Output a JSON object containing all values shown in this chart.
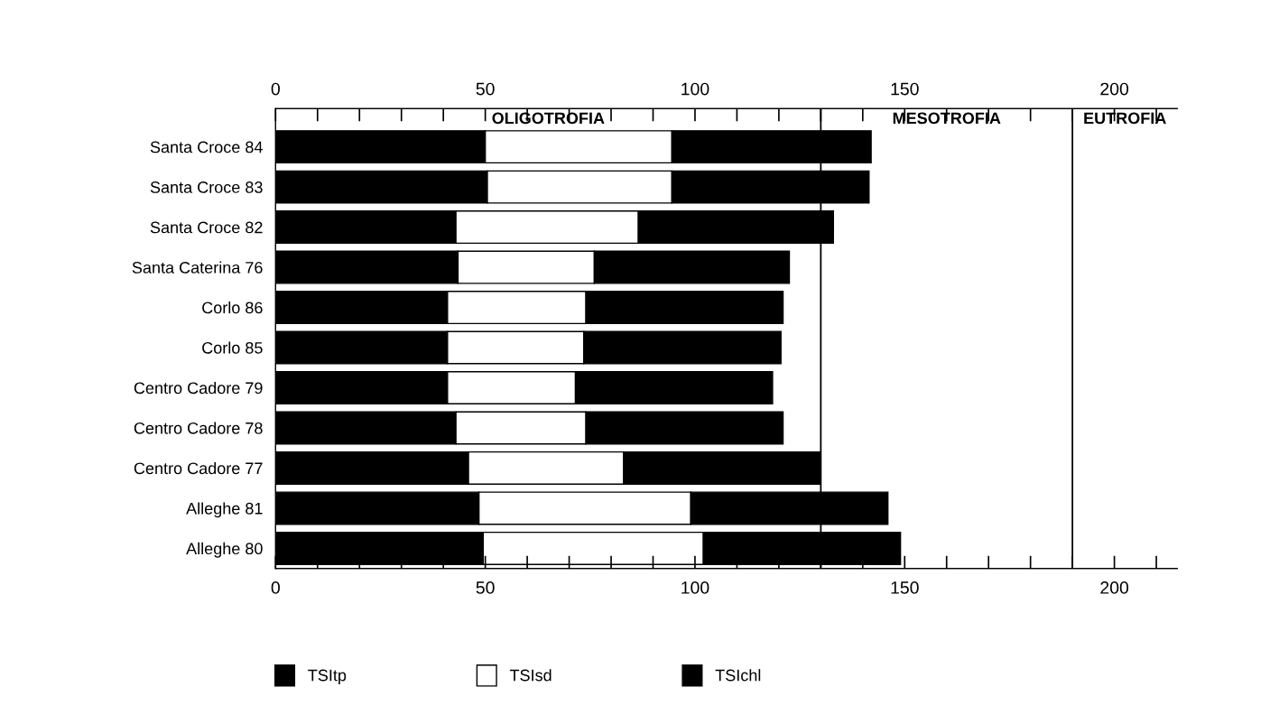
{
  "chart_data": {
    "type": "bar",
    "orientation": "horizontal",
    "stacked": true,
    "categories": [
      "Santa Croce 84",
      "Santa Croce 83",
      "Santa Croce 82",
      "Santa Caterina 76",
      "Corlo 86",
      "Corlo 85",
      "Centro Cadore 79",
      "Centro Cadore 78",
      "Centro Cadore 77",
      "Alleghe 81",
      "Alleghe 80"
    ],
    "series": [
      {
        "name": "TSItp",
        "color": "#000000",
        "values": [
          50,
          50.5,
          43,
          43.5,
          41,
          41,
          41,
          43,
          46,
          48.5,
          49.5
        ]
      },
      {
        "name": "TSIsd",
        "color": "#ffffff",
        "values": [
          44.5,
          44,
          43.5,
          32.5,
          33,
          32.5,
          30.5,
          31,
          37,
          50.5,
          52.5
        ]
      },
      {
        "name": "TSIchl",
        "color": "#000000",
        "values": [
          47.5,
          47,
          46.5,
          46.5,
          47,
          47,
          47,
          47,
          47,
          47,
          47
        ]
      }
    ],
    "xlim": [
      0,
      215
    ],
    "xticks": [
      0,
      {
        "value": 10,
        "label": null
      },
      {
        "value": 20,
        "label": null
      },
      {
        "value": 30,
        "label": null
      },
      {
        "value": 40,
        "label": null
      },
      50,
      {
        "value": 60,
        "label": null
      },
      {
        "value": 70,
        "label": null
      },
      {
        "value": 80,
        "label": null
      },
      {
        "value": 90,
        "label": null
      },
      100,
      {
        "value": 110,
        "label": null
      },
      {
        "value": 120,
        "label": null
      },
      {
        "value": 130,
        "label": null
      },
      {
        "value": 140,
        "label": null
      },
      150,
      {
        "value": 160,
        "label": null
      },
      {
        "value": 170,
        "label": null
      },
      {
        "value": 180,
        "label": null
      },
      {
        "value": 190,
        "label": null
      },
      200,
      {
        "value": 210,
        "label": null
      }
    ],
    "x2lim": [
      0,
      215
    ],
    "x2ticks": [
      0,
      {
        "value": 10,
        "label": null
      },
      {
        "value": 20,
        "label": null
      },
      {
        "value": 30,
        "label": null
      },
      {
        "value": 40,
        "label": null
      },
      50,
      {
        "value": 60,
        "label": null
      },
      {
        "value": 70,
        "label": null
      },
      {
        "value": 80,
        "label": null
      },
      {
        "value": 90,
        "label": null
      },
      100,
      {
        "value": 110,
        "label": null
      },
      {
        "value": 120,
        "label": null
      },
      {
        "value": 130,
        "label": null
      },
      {
        "value": 140,
        "label": null
      },
      150,
      {
        "value": 160,
        "label": null
      },
      {
        "value": 170,
        "label": null
      },
      {
        "value": 180,
        "label": null
      },
      {
        "value": 190,
        "label": null
      },
      200,
      {
        "value": 210,
        "label": null
      }
    ],
    "ref_lines": [
      {
        "axis": "x",
        "value": 130,
        "color": "#000000"
      },
      {
        "axis": "x",
        "value": 190,
        "color": "#000000"
      }
    ],
    "annotations": [
      "OLIGOTROFIA",
      "MESOTROFIA",
      "EUTROFIA"
    ],
    "grid": false,
    "legend": "bottom left"
  }
}
